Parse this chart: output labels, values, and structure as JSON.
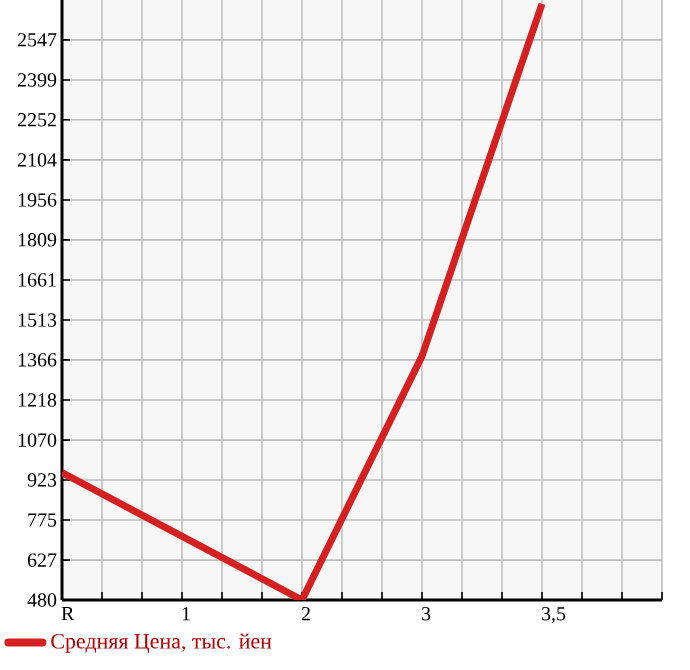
{
  "chart_data": {
    "type": "line",
    "categories": [
      "R",
      "1",
      "2",
      "3",
      "3,5",
      null
    ],
    "series": [
      {
        "name": "Средняя Цена, тыс. йен",
        "color": "#d42020",
        "values": [
          950,
          715,
          480,
          1380,
          2680,
          null
        ]
      }
    ],
    "ylim": [
      480,
      2694
    ],
    "yticks": [
      480,
      627,
      775,
      923,
      1070,
      1218,
      1366,
      1513,
      1661,
      1809,
      1956,
      2104,
      2252,
      2399,
      2547
    ],
    "grid": true,
    "legend": "bottom",
    "marker": "none",
    "line_style": "solid"
  }
}
